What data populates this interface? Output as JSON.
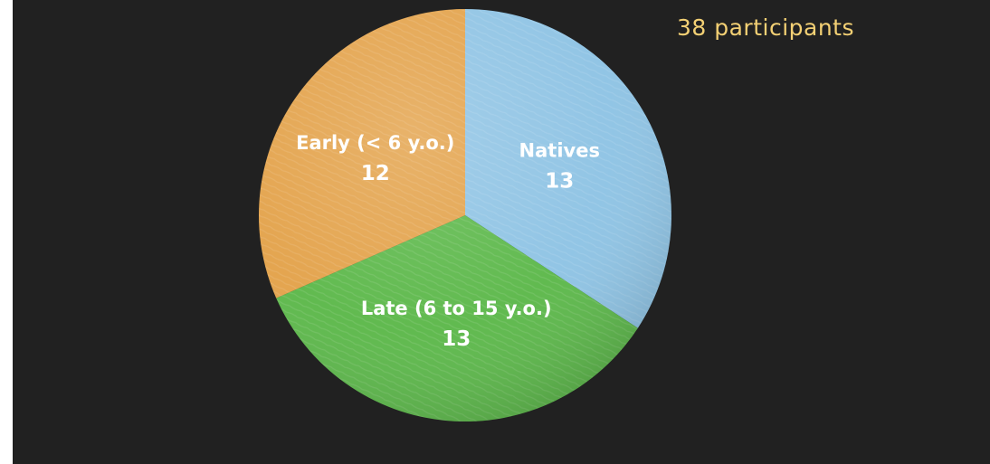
{
  "chart_data": {
    "type": "pie",
    "annotation": "38 participants",
    "slices": [
      {
        "label": "Natives",
        "value": 13,
        "color": "#8ec3e4"
      },
      {
        "label": "Late (6 to 15 y.o.)",
        "value": 13,
        "color": "#5cb84a"
      },
      {
        "label": "Early (< 6 y.o.)",
        "value": 12,
        "color": "#e3a24a"
      }
    ],
    "start": "top",
    "direction": "clockwise"
  }
}
